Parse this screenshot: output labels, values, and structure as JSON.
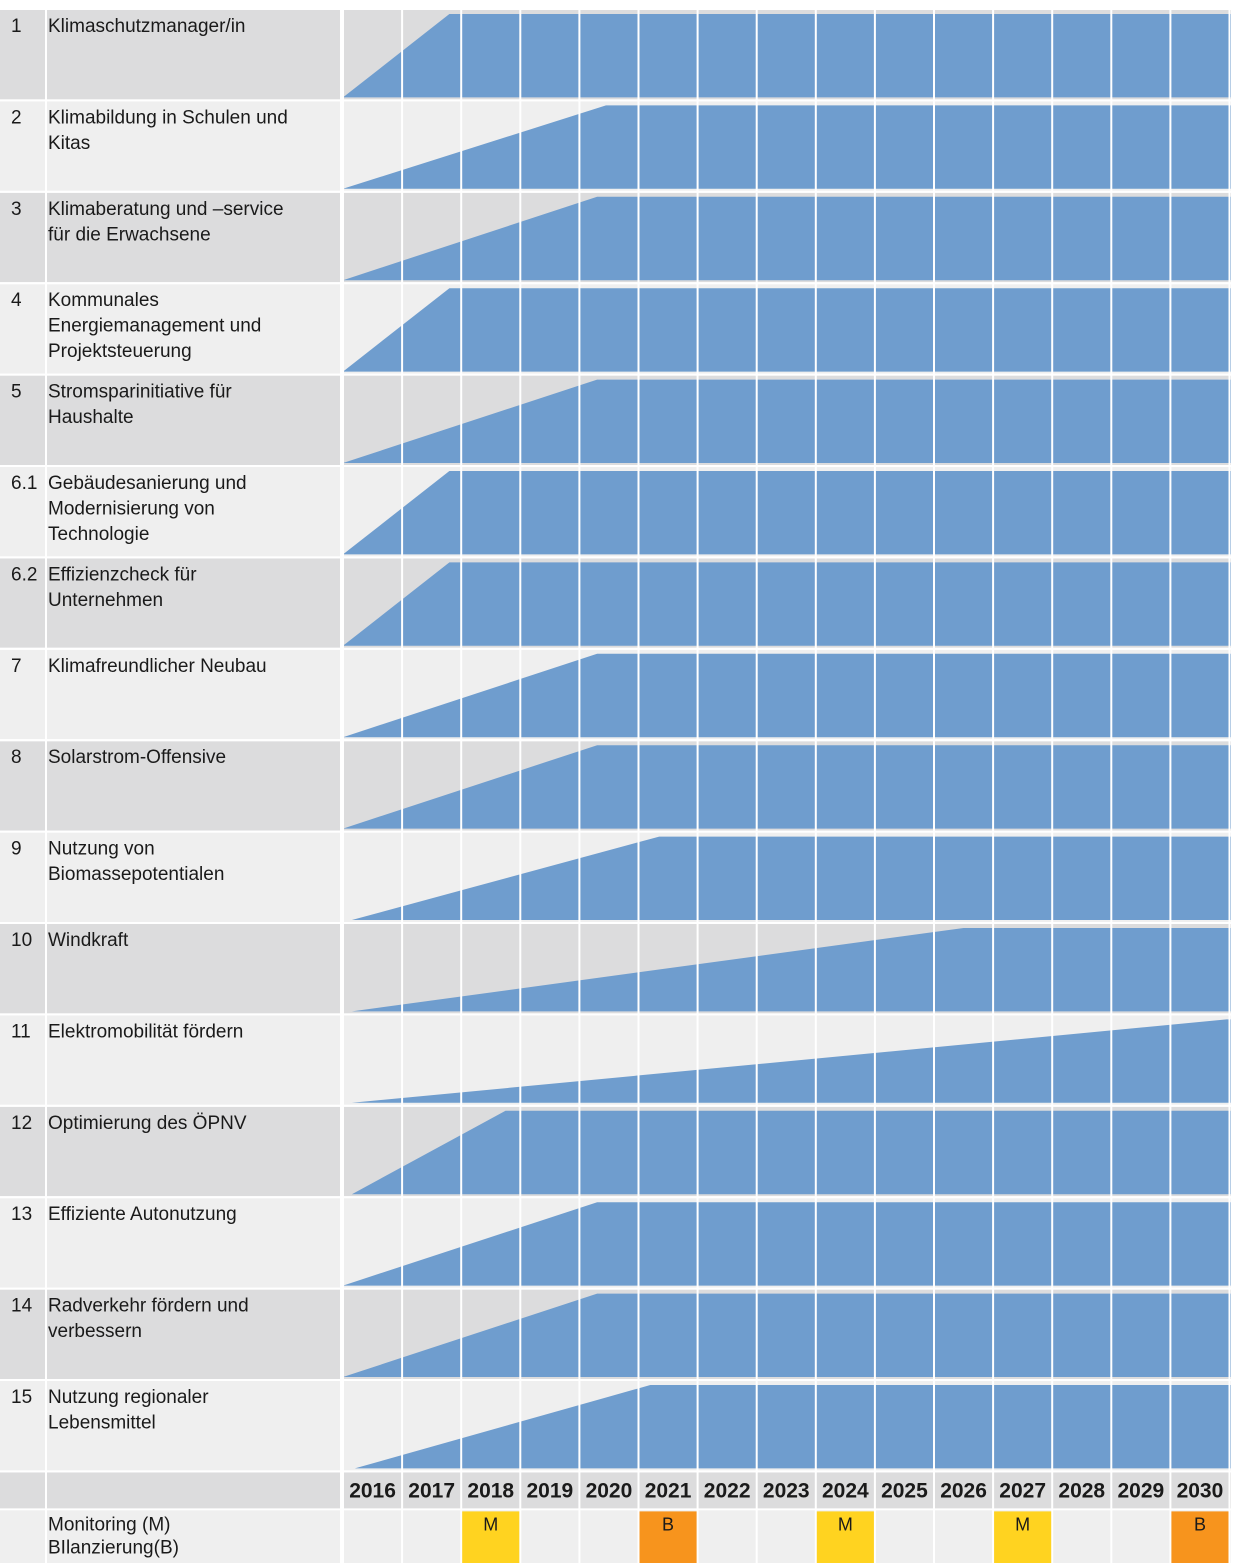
{
  "chart_data": {
    "type": "gantt",
    "years": [
      "2016",
      "2017",
      "2018",
      "2019",
      "2020",
      "2021",
      "2022",
      "2023",
      "2024",
      "2025",
      "2026",
      "2027",
      "2028",
      "2029",
      "2030"
    ],
    "rows": [
      {
        "id": "1",
        "lines": [
          "Klimaschutzmanager/in"
        ],
        "ramp_start": 2016.0,
        "ramp_end": 2017.8
      },
      {
        "id": "2",
        "lines": [
          "Klimabildung in Schulen und",
          "Kitas"
        ],
        "ramp_start": 2016.0,
        "ramp_end": 2020.45
      },
      {
        "id": "3",
        "lines": [
          "Klimaberatung und –service",
          "für die Erwachsene"
        ],
        "ramp_start": 2016.0,
        "ramp_end": 2020.3
      },
      {
        "id": "4",
        "lines": [
          "Kommunales",
          "Energiemanagement und",
          "Projektsteuerung"
        ],
        "ramp_start": 2016.0,
        "ramp_end": 2017.8
      },
      {
        "id": "5",
        "lines": [
          "Stromsparinitiative für",
          "Haushalte"
        ],
        "ramp_start": 2016.0,
        "ramp_end": 2020.3
      },
      {
        "id": "6.1",
        "lines": [
          "Gebäudesanierung und",
          "Modernisierung von",
          "Technologie"
        ],
        "ramp_start": 2016.0,
        "ramp_end": 2017.8
      },
      {
        "id": "6.2",
        "lines": [
          "Effizienzcheck für",
          "Unternehmen"
        ],
        "ramp_start": 2016.0,
        "ramp_end": 2017.8
      },
      {
        "id": "7",
        "lines": [
          "Klimafreundlicher Neubau"
        ],
        "ramp_start": 2016.0,
        "ramp_end": 2020.3
      },
      {
        "id": "8",
        "lines": [
          "Solarstrom-Offensive"
        ],
        "ramp_start": 2016.0,
        "ramp_end": 2020.3
      },
      {
        "id": "9",
        "lines": [
          "Nutzung von",
          "Biomassepotentialen"
        ],
        "ramp_start": 2016.15,
        "ramp_end": 2021.35
      },
      {
        "id": "10",
        "lines": [
          "Windkraft"
        ],
        "ramp_start": 2016.15,
        "ramp_end": 2026.5
      },
      {
        "id": "11",
        "lines": [
          "Elektromobilität fördern"
        ],
        "ramp_start": 2016.15,
        "ramp_end": 2030.95
      },
      {
        "id": "12",
        "lines": [
          "Optimierung des ÖPNV"
        ],
        "ramp_start": 2016.15,
        "ramp_end": 2018.75
      },
      {
        "id": "13",
        "lines": [
          "Effiziente Autonutzung"
        ],
        "ramp_start": 2016.0,
        "ramp_end": 2020.3
      },
      {
        "id": "14",
        "lines": [
          "Radverkehr fördern und",
          "verbessern"
        ],
        "ramp_start": 2016.0,
        "ramp_end": 2020.3
      },
      {
        "id": "15",
        "lines": [
          "Nutzung regionaler",
          "Lebensmittel"
        ],
        "ramp_start": 2016.2,
        "ramp_end": 2021.2
      }
    ],
    "footer": {
      "label_lines": [
        "Monitoring (M)",
        "BIlanzierung(B)"
      ],
      "markers": [
        {
          "year": "2018",
          "text": "M",
          "kind": "M"
        },
        {
          "year": "2021",
          "text": "B",
          "kind": "B"
        },
        {
          "year": "2024",
          "text": "M",
          "kind": "M"
        },
        {
          "year": "2027",
          "text": "M",
          "kind": "M"
        },
        {
          "year": "2030",
          "text": "B",
          "kind": "B"
        }
      ]
    },
    "colors": {
      "bar": "#6f9dce",
      "row_dark": "#dcdcdd",
      "row_light": "#efefef",
      "marker_M": "#ffd320",
      "marker_B": "#f7941d",
      "grid": "#ffffff"
    }
  }
}
